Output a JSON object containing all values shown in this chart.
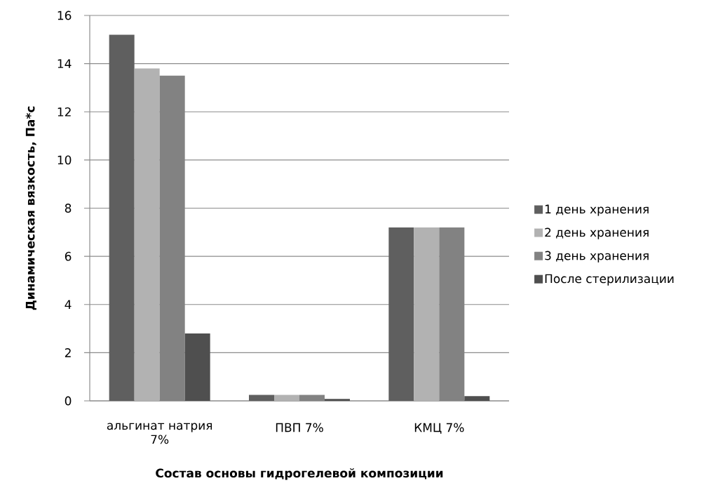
{
  "chart_data": {
    "type": "bar",
    "xlabel": "Состав основы гидрогелевой композиции",
    "ylabel": "Динамическая вязкость, Па*с",
    "categories": [
      "альгинат натрия 7%",
      "ПВП 7%",
      "КМЦ 7%"
    ],
    "series": [
      {
        "name": "1 день хранения",
        "color": "#5f5f5f",
        "values": [
          15.2,
          0.25,
          7.2
        ]
      },
      {
        "name": "2 день хранения",
        "color": "#b2b2b2",
        "values": [
          13.8,
          0.25,
          7.2
        ]
      },
      {
        "name": "3 день хранения",
        "color": "#828282",
        "values": [
          13.5,
          0.25,
          7.2
        ]
      },
      {
        "name": "После стерилизации",
        "color": "#4f4f4f",
        "values": [
          2.8,
          0.08,
          0.2
        ]
      }
    ],
    "ylim": [
      0,
      16
    ],
    "yticks": [
      0,
      2,
      4,
      6,
      8,
      10,
      12,
      14,
      16
    ],
    "grid": "y",
    "legend": "right"
  }
}
